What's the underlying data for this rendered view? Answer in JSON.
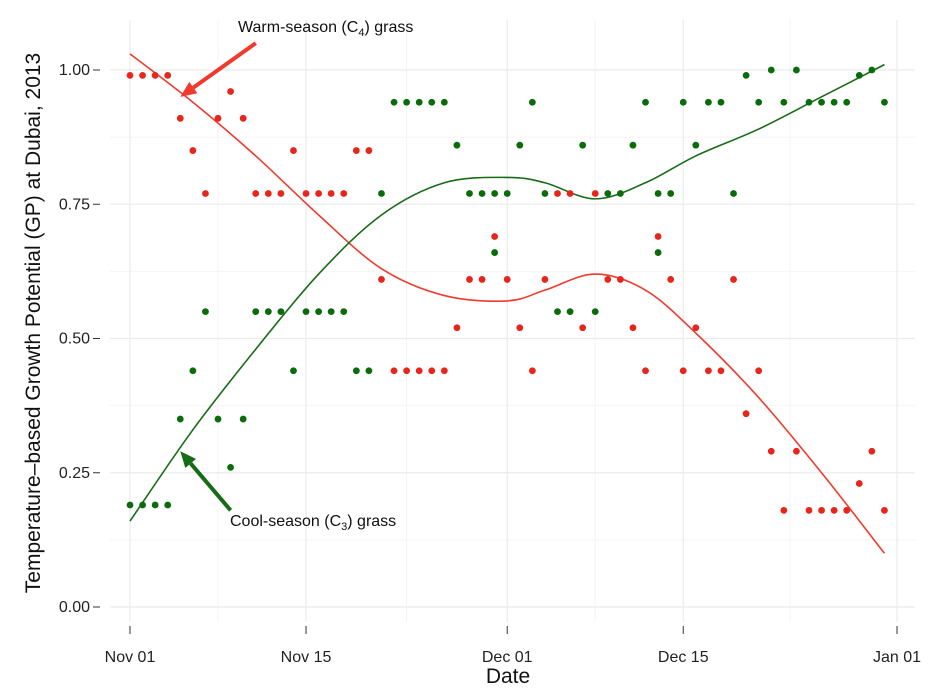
{
  "chart_data": {
    "type": "scatter",
    "xlabel": "Date",
    "ylabel": "Temperature–based Growth Potential (GP) at Dubai, 2013",
    "xlim": [
      "2013-11-01",
      "2014-01-01"
    ],
    "ylim": [
      0,
      1
    ],
    "x_ticks": [
      {
        "date": "2013-11-01",
        "label": "Nov 01"
      },
      {
        "date": "2013-11-15",
        "label": "Nov 15"
      },
      {
        "date": "2013-12-01",
        "label": "Dec 01"
      },
      {
        "date": "2013-12-15",
        "label": "Dec 15"
      },
      {
        "date": "2014-01-01",
        "label": "Jan 01"
      }
    ],
    "y_ticks": [
      {
        "value": 0.0,
        "label": "0.00"
      },
      {
        "value": 0.25,
        "label": "0.25"
      },
      {
        "value": 0.5,
        "label": "0.50"
      },
      {
        "value": 0.75,
        "label": "0.75"
      },
      {
        "value": 1.0,
        "label": "1.00"
      }
    ],
    "grid": true,
    "series": [
      {
        "color": "#e8251b",
        "x": [
          "2013-11-01",
          "2013-11-02",
          "2013-11-03",
          "2013-11-04",
          "2013-11-05",
          "2013-11-06",
          "2013-11-07",
          "2013-11-08",
          "2013-11-09",
          "2013-11-10",
          "2013-11-11",
          "2013-11-12",
          "2013-11-13",
          "2013-11-14",
          "2013-11-15",
          "2013-11-16",
          "2013-11-17",
          "2013-11-18",
          "2013-11-19",
          "2013-11-20",
          "2013-11-21",
          "2013-11-22",
          "2013-11-23",
          "2013-11-24",
          "2013-11-25",
          "2013-11-26",
          "2013-11-27",
          "2013-11-28",
          "2013-11-29",
          "2013-11-30",
          "2013-12-01",
          "2013-12-02",
          "2013-12-03",
          "2013-12-04",
          "2013-12-05",
          "2013-12-06",
          "2013-12-07",
          "2013-12-08",
          "2013-12-09",
          "2013-12-10",
          "2013-12-11",
          "2013-12-12",
          "2013-12-13",
          "2013-12-14",
          "2013-12-15",
          "2013-12-16",
          "2013-12-17",
          "2013-12-18",
          "2013-12-19",
          "2013-12-20",
          "2013-12-21",
          "2013-12-22",
          "2013-12-23",
          "2013-12-24",
          "2013-12-25",
          "2013-12-26",
          "2013-12-27",
          "2013-12-28",
          "2013-12-29",
          "2013-12-30",
          "2013-12-31"
        ],
        "y": [
          0.99,
          0.99,
          0.99,
          0.99,
          0.91,
          0.85,
          0.77,
          0.91,
          0.96,
          0.91,
          0.77,
          0.77,
          0.77,
          0.85,
          0.77,
          0.77,
          0.77,
          0.77,
          0.85,
          0.85,
          0.61,
          0.44,
          0.44,
          0.44,
          0.44,
          0.44,
          0.52,
          0.61,
          0.61,
          0.69,
          0.61,
          0.52,
          0.44,
          0.61,
          0.77,
          0.77,
          0.52,
          0.77,
          0.61,
          0.61,
          0.52,
          0.44,
          0.69,
          0.61,
          0.44,
          0.52,
          0.44,
          0.44,
          0.61,
          0.36,
          0.44,
          0.29,
          0.18,
          0.29,
          0.18,
          0.18,
          0.18,
          0.18,
          0.23,
          0.29,
          0.18
        ]
      },
      {
        "color": "#0a6b0a",
        "x": [
          "2013-11-01",
          "2013-11-02",
          "2013-11-03",
          "2013-11-04",
          "2013-11-05",
          "2013-11-06",
          "2013-11-07",
          "2013-11-08",
          "2013-11-09",
          "2013-11-10",
          "2013-11-11",
          "2013-11-12",
          "2013-11-13",
          "2013-11-14",
          "2013-11-15",
          "2013-11-16",
          "2013-11-17",
          "2013-11-18",
          "2013-11-19",
          "2013-11-20",
          "2013-11-21",
          "2013-11-22",
          "2013-11-23",
          "2013-11-24",
          "2013-11-25",
          "2013-11-26",
          "2013-11-27",
          "2013-11-28",
          "2013-11-29",
          "2013-11-30",
          "2013-11-30",
          "2013-12-01",
          "2013-12-02",
          "2013-12-03",
          "2013-12-04",
          "2013-12-05",
          "2013-12-06",
          "2013-12-07",
          "2013-12-08",
          "2013-12-09",
          "2013-12-10",
          "2013-12-11",
          "2013-12-12",
          "2013-12-13",
          "2013-12-13",
          "2013-12-14",
          "2013-12-15",
          "2013-12-16",
          "2013-12-17",
          "2013-12-18",
          "2013-12-19",
          "2013-12-20",
          "2013-12-21",
          "2013-12-22",
          "2013-12-23",
          "2013-12-24",
          "2013-12-25",
          "2013-12-26",
          "2013-12-27",
          "2013-12-28",
          "2013-12-29",
          "2013-12-30",
          "2013-12-31"
        ],
        "y": [
          0.19,
          0.19,
          0.19,
          0.19,
          0.35,
          0.44,
          0.55,
          0.35,
          0.26,
          0.35,
          0.55,
          0.55,
          0.55,
          0.44,
          0.55,
          0.55,
          0.55,
          0.55,
          0.44,
          0.44,
          0.77,
          0.94,
          0.94,
          0.94,
          0.94,
          0.94,
          0.86,
          0.77,
          0.77,
          0.77,
          0.66,
          0.77,
          0.86,
          0.94,
          0.77,
          0.55,
          0.55,
          0.86,
          0.55,
          0.77,
          0.77,
          0.86,
          0.94,
          0.77,
          0.66,
          0.77,
          0.94,
          0.86,
          0.94,
          0.94,
          0.77,
          0.99,
          0.94,
          1.0,
          0.94,
          1.0,
          0.94,
          0.94,
          0.94,
          0.94,
          0.99,
          1.0,
          0.94
        ]
      }
    ],
    "smooth_curves": [
      {
        "color": "#f03a2e",
        "x": [
          "2013-11-01",
          "2013-11-06",
          "2013-11-11",
          "2013-11-16",
          "2013-11-21",
          "2013-11-26",
          "2013-12-01",
          "2013-12-04",
          "2013-12-08",
          "2013-12-12",
          "2013-12-16",
          "2013-12-21",
          "2013-12-26",
          "2013-12-31"
        ],
        "y": [
          1.03,
          0.94,
          0.84,
          0.73,
          0.63,
          0.58,
          0.57,
          0.59,
          0.62,
          0.59,
          0.51,
          0.39,
          0.25,
          0.1
        ]
      },
      {
        "color": "#176b17",
        "x": [
          "2013-11-01",
          "2013-11-06",
          "2013-11-11",
          "2013-11-16",
          "2013-11-21",
          "2013-11-26",
          "2013-12-01",
          "2013-12-04",
          "2013-12-08",
          "2013-12-12",
          "2013-12-16",
          "2013-12-21",
          "2013-12-26",
          "2013-12-31"
        ],
        "y": [
          0.16,
          0.33,
          0.48,
          0.62,
          0.73,
          0.79,
          0.8,
          0.79,
          0.76,
          0.79,
          0.84,
          0.89,
          0.95,
          1.01
        ]
      }
    ],
    "annotations": [
      {
        "color": "#f03a2e",
        "text_before": "Warm-season (C",
        "subscript": "4",
        "text_after": ") grass",
        "arrow_from": {
          "x": "2013-11-11",
          "y": 1.05
        },
        "arrow_to": {
          "x": "2013-11-05",
          "y": 0.95
        }
      },
      {
        "color": "#176b17",
        "text_before": "Cool-season (C",
        "subscript": "3",
        "text_after": ") grass",
        "arrow_from": {
          "x": "2013-11-09",
          "y": 0.18
        },
        "arrow_to": {
          "x": "2013-11-05",
          "y": 0.29
        }
      }
    ]
  }
}
